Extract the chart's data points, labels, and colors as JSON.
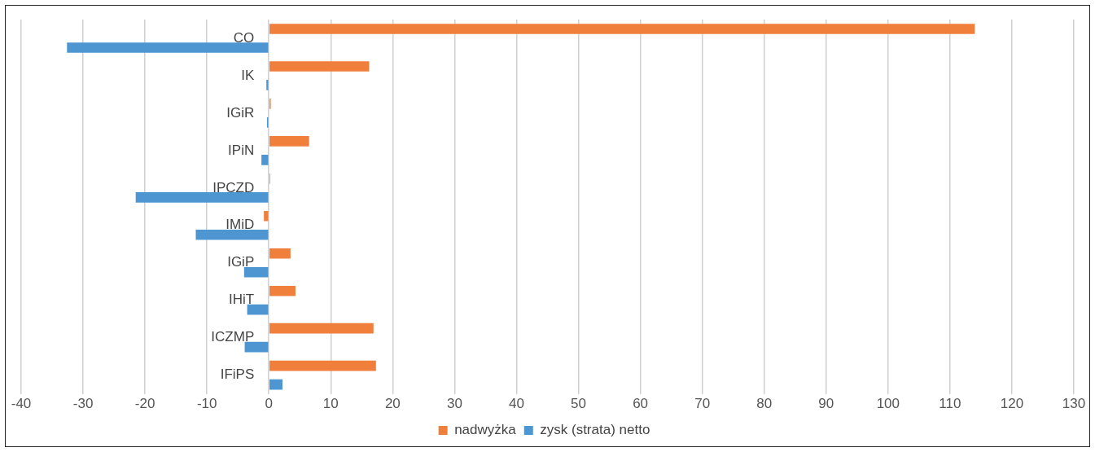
{
  "chart_data": {
    "type": "bar",
    "orientation": "horizontal",
    "categories": [
      "CO",
      "IK",
      "IGiR",
      "IPiN",
      "IPCZD",
      "IMiD",
      "IGiP",
      "IHiT",
      "ICZMP",
      "IFiPS"
    ],
    "series": [
      {
        "name": "nadwyżka",
        "color": "#f07f3c",
        "values": [
          114,
          16.2,
          0.3,
          6.5,
          0.2,
          -0.8,
          3.5,
          4.3,
          16.9,
          17.3
        ]
      },
      {
        "name": "zysk (strata) netto",
        "color": "#4e96d2",
        "values": [
          -32.6,
          -0.4,
          -0.3,
          -1.2,
          -21.5,
          -11.8,
          -4.0,
          -3.5,
          -3.9,
          2.2
        ]
      }
    ],
    "xlim": [
      -40,
      130
    ],
    "xticks": [
      -40,
      -30,
      -20,
      -10,
      0,
      10,
      20,
      30,
      40,
      50,
      60,
      70,
      80,
      90,
      100,
      110,
      120,
      130
    ],
    "grid": "x",
    "legend": "bottom"
  }
}
